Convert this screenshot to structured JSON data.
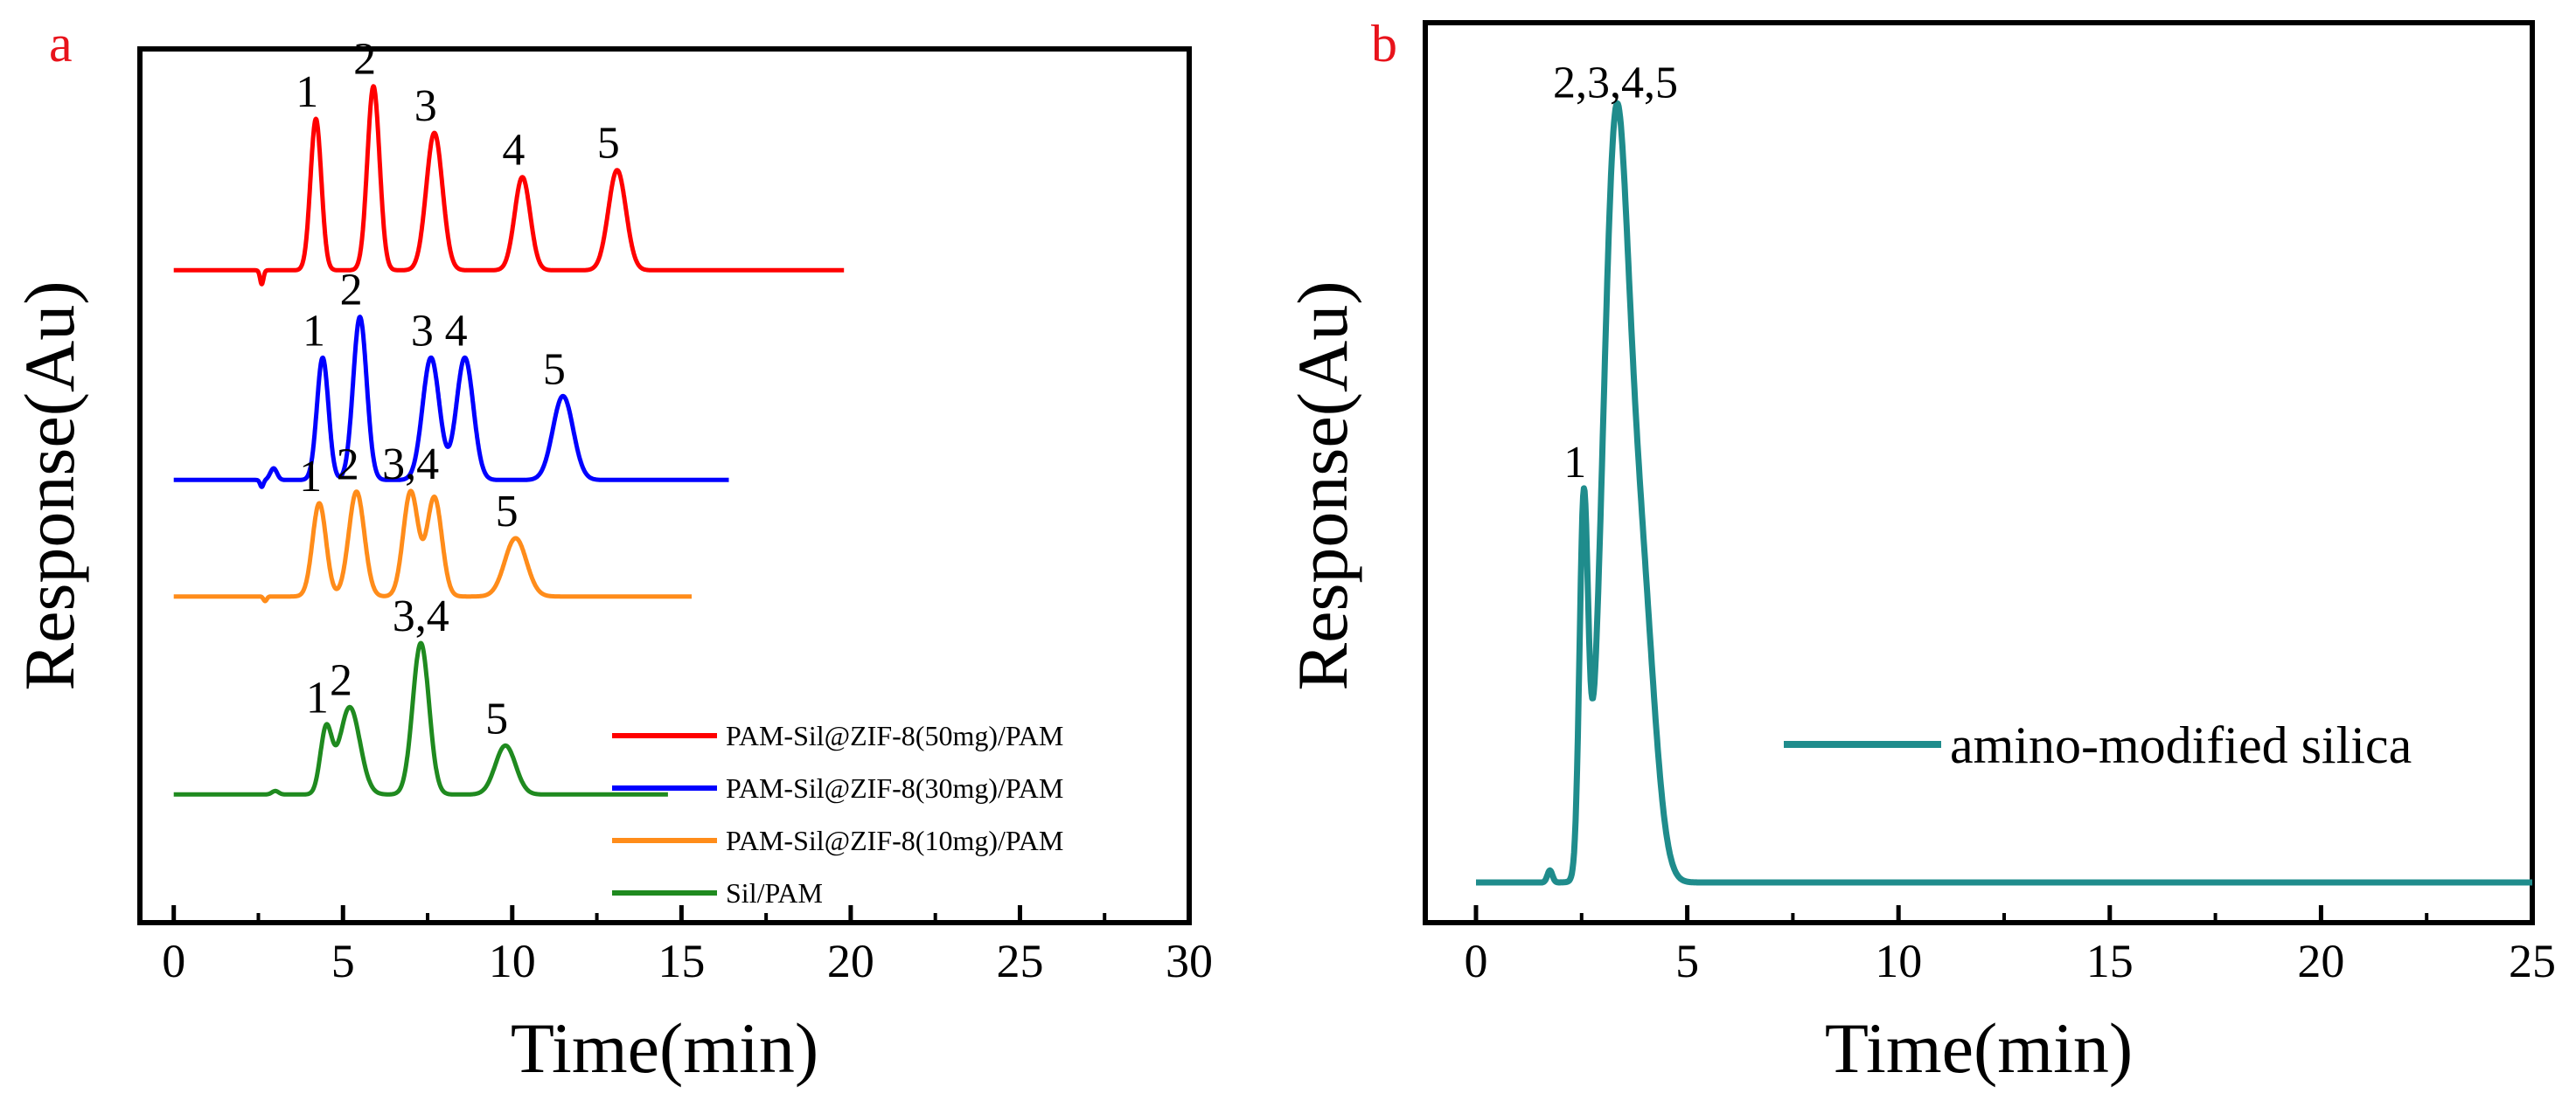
{
  "chart_data": [
    {
      "panel_label": "a",
      "type": "line",
      "xlabel": "Time(min)",
      "ylabel": "Response(Au)",
      "xlim": [
        -1,
        30
      ],
      "ylim": [
        -1.1,
        6.4
      ],
      "xticks": [
        0,
        5,
        10,
        15,
        20,
        25,
        30
      ],
      "y_ticks_visible": false,
      "legend_position": "lower-right",
      "series": [
        {
          "name": "PAM-Sil@ZIF-8(50mg)/PAM",
          "color": "#ff0000",
          "baseline": 4.5,
          "x_end": 19.8,
          "dips": [
            {
              "t": 2.6,
              "h": 0.12
            }
          ],
          "peaks": [
            {
              "t": 4.2,
              "h": 1.3,
              "w": 0.16,
              "label": "1"
            },
            {
              "t": 5.9,
              "h": 1.58,
              "w": 0.18,
              "label": "2"
            },
            {
              "t": 7.7,
              "h": 1.18,
              "w": 0.24,
              "label": "3"
            },
            {
              "t": 10.3,
              "h": 0.8,
              "w": 0.23,
              "label": "4"
            },
            {
              "t": 13.1,
              "h": 0.86,
              "w": 0.26,
              "label": "5"
            }
          ]
        },
        {
          "name": "PAM-Sil@ZIF-8(30mg)/PAM",
          "color": "#0000ff",
          "baseline": 2.7,
          "x_end": 16.4,
          "dips": [
            {
              "t": 2.6,
              "h": 0.06
            }
          ],
          "bumps": [
            {
              "t": 2.95,
              "h": 0.1,
              "w": 0.1
            }
          ],
          "peaks": [
            {
              "t": 4.4,
              "h": 1.05,
              "w": 0.17,
              "label": "1"
            },
            {
              "t": 5.5,
              "h": 1.4,
              "w": 0.2,
              "label": "2"
            },
            {
              "t": 7.6,
              "h": 1.05,
              "w": 0.25,
              "label": "3"
            },
            {
              "t": 8.6,
              "h": 1.05,
              "w": 0.25,
              "label": "4"
            },
            {
              "t": 11.5,
              "h": 0.72,
              "w": 0.3,
              "label": "5"
            }
          ]
        },
        {
          "name": "PAM-Sil@ZIF-8(10mg)/PAM",
          "color": "#ff8c1a",
          "baseline": 1.7,
          "x_end": 15.3,
          "dips": [
            {
              "t": 2.7,
              "h": 0.04
            }
          ],
          "peaks": [
            {
              "t": 4.3,
              "h": 0.8,
              "w": 0.2,
              "label": "1"
            },
            {
              "t": 5.4,
              "h": 0.9,
              "w": 0.23,
              "label": "2"
            },
            {
              "t": 7.0,
              "h": 0.9,
              "w": 0.22,
              "label": "3,4"
            },
            {
              "t": 7.7,
              "h": 0.85,
              "w": 0.22,
              "label": ""
            },
            {
              "t": 10.1,
              "h": 0.5,
              "w": 0.32,
              "label": "5"
            }
          ]
        },
        {
          "name": "Sil/PAM",
          "color": "#1f8a1f",
          "baseline": 0.0,
          "x_end": 14.6,
          "dips": [],
          "bumps": [
            {
              "t": 3.0,
              "h": 0.03,
              "w": 0.1
            }
          ],
          "peaks": [
            {
              "t": 4.5,
              "h": 0.55,
              "w": 0.17,
              "label": "1"
            },
            {
              "t": 5.2,
              "h": 0.75,
              "w": 0.3,
              "label": "2"
            },
            {
              "t": 7.3,
              "h": 1.3,
              "w": 0.24,
              "label": "3,4"
            },
            {
              "t": 9.8,
              "h": 0.42,
              "w": 0.3,
              "label": "5"
            }
          ]
        }
      ]
    },
    {
      "panel_label": "b",
      "type": "line",
      "xlabel": "Time(min)",
      "ylabel": "Response(Au)",
      "xlim": [
        -1.2,
        25
      ],
      "ylim": [
        -0.05,
        1.07
      ],
      "xticks": [
        0,
        5,
        10,
        15,
        20,
        25
      ],
      "y_ticks_visible": false,
      "legend_position": "center-right",
      "series": [
        {
          "name": "amino-modified silica",
          "color": "#1f8c8c",
          "baseline": 0.0,
          "x_end": 25,
          "dips": [],
          "bumps": [
            {
              "t": 1.75,
              "h": 0.015,
              "w": 0.06
            }
          ],
          "peaks": [
            {
              "t": 2.55,
              "h": 0.45,
              "w": 0.1,
              "label": "1"
            },
            {
              "t": 3.3,
              "h": 0.9,
              "w": 0.3,
              "label": "2,3,4,5"
            },
            {
              "t": 3.9,
              "h": 0.36,
              "w": 0.32,
              "label": ""
            }
          ]
        }
      ]
    }
  ]
}
